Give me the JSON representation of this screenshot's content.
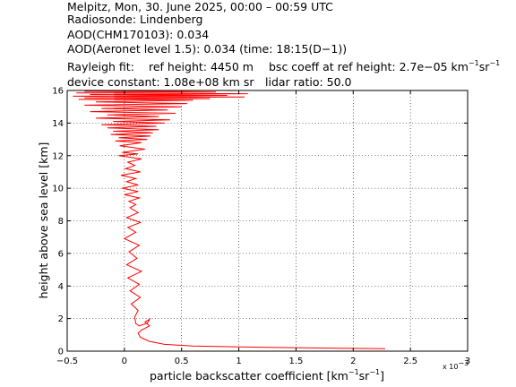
{
  "header": {
    "line1": "Melpitz, Mon, 30. June 2025, 00:00 – 00:59 UTC",
    "line2": "Radiosonde: Lindenberg",
    "line3": "AOD(CHM170103): 0.034",
    "line4": "AOD(Aeronet level 1.5): 0.034   (time: 18:15(D−1))",
    "rayleigh_label": "Rayleigh fit:",
    "ref_height": "ref height: 4450 m",
    "bsc_coeff_pre": "bsc coeff at ref height: 2.7e−05 km",
    "bsc_coeff_sup1": "−1",
    "bsc_coeff_mid": "sr",
    "bsc_coeff_sup2": "−1",
    "device_constant": "device constant: 1.08e+08 km sr",
    "lidar_ratio": "lidar ratio: 50.0"
  },
  "chart_data": {
    "type": "line",
    "xlabel_pre": "particle backscatter coefficient [km",
    "xlabel_sup1": "−1",
    "xlabel_mid": "sr",
    "xlabel_sup2": "−1",
    "xlabel_post": "]",
    "x_exponent_base": "x 10",
    "x_exponent_power": "−3",
    "ylabel": "height above sea level [km]",
    "xlim": [
      -0.5,
      3
    ],
    "ylim": [
      0,
      16
    ],
    "xticks": [
      "−0.5",
      "0",
      "0.5",
      "1",
      "1.5",
      "2",
      "2.5",
      "3"
    ],
    "xtick_values": [
      -0.5,
      0,
      0.5,
      1,
      1.5,
      2,
      2.5,
      3
    ],
    "yticks": [
      "0",
      "2",
      "4",
      "6",
      "8",
      "10",
      "12",
      "14",
      "16"
    ],
    "ytick_values": [
      0,
      2,
      4,
      6,
      8,
      10,
      12,
      14,
      16
    ],
    "grid": true,
    "series_color": "#ff0000",
    "series": [
      {
        "x": [
          2.28,
          1.9,
          1.4,
          1.0,
          0.6,
          0.35,
          0.22,
          0.14,
          0.12,
          0.15,
          0.22,
          0.18,
          0.22,
          0.2,
          0.13,
          0.1,
          0.09,
          0.12,
          0.06,
          0.14,
          0.05,
          0.13,
          0.03,
          0.15,
          0.02,
          0.11,
          0.04,
          0.13,
          0.0,
          0.1,
          0.03,
          0.14,
          0.02,
          0.12,
          0.05,
          0.1,
          0.04,
          0.13,
          0.0,
          0.12,
          -0.02,
          0.12,
          0.02,
          0.1,
          -0.03,
          0.14,
          0.01,
          0.09,
          0.03,
          0.15,
          -0.05,
          0.12,
          -0.02,
          0.18,
          -0.04,
          0.15,
          -0.08,
          0.2,
          -0.05,
          0.23,
          -0.12,
          0.25,
          -0.1,
          0.3,
          -0.15,
          0.28,
          -0.2,
          0.35,
          -0.1,
          0.4,
          -0.25,
          0.3,
          -0.15,
          0.45,
          -0.3,
          0.38,
          -0.2,
          0.5,
          -0.35,
          0.55,
          -0.25,
          0.6,
          -0.4,
          0.75,
          -0.35,
          1.05,
          -0.45,
          0.9,
          -0.3,
          1.08,
          -0.42,
          0.8,
          -0.35,
          1.0
        ],
        "y": [
          0.15,
          0.18,
          0.22,
          0.26,
          0.32,
          0.42,
          0.6,
          0.85,
          1.1,
          1.3,
          1.55,
          1.8,
          1.95,
          1.72,
          1.55,
          1.7,
          2.1,
          2.5,
          2.9,
          3.3,
          3.7,
          4.1,
          4.5,
          4.9,
          5.3,
          5.7,
          6.1,
          6.5,
          6.9,
          7.3,
          7.6,
          7.9,
          8.2,
          8.5,
          8.8,
          9.0,
          9.2,
          9.4,
          9.6,
          9.8,
          10.0,
          10.2,
          10.4,
          10.6,
          10.8,
          11.0,
          11.2,
          11.4,
          11.6,
          11.8,
          12.0,
          12.1,
          12.2,
          12.4,
          12.6,
          12.8,
          12.9,
          13.0,
          13.1,
          13.2,
          13.3,
          13.4,
          13.5,
          13.6,
          13.7,
          13.8,
          13.9,
          14.0,
          14.1,
          14.2,
          14.3,
          14.4,
          14.5,
          14.6,
          14.7,
          14.8,
          14.9,
          15.0,
          15.1,
          15.2,
          15.3,
          15.4,
          15.45,
          15.5,
          15.55,
          15.6,
          15.65,
          15.7,
          15.75,
          15.8,
          15.85,
          15.9,
          15.95,
          16.0
        ]
      }
    ]
  }
}
